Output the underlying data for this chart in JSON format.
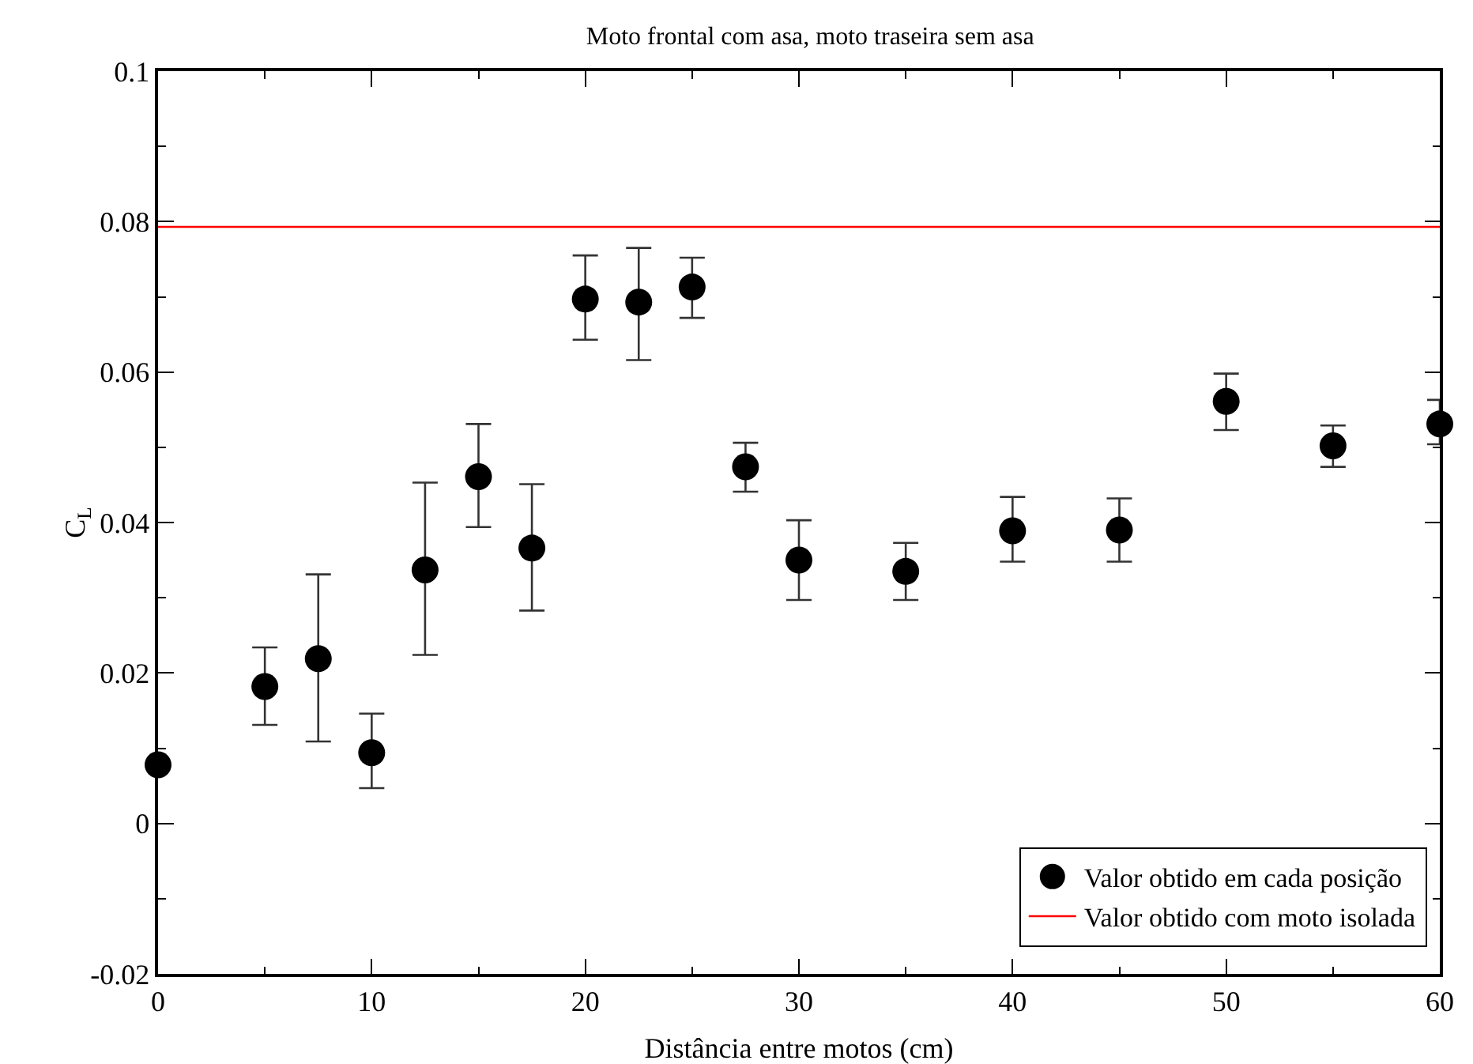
{
  "chart_data": {
    "type": "scatter",
    "title": "Moto frontal com asa, moto traseira sem asa",
    "xlabel": "Distância entre motos (cm)",
    "ylabel": "C$_{L}$",
    "x": [
      0,
      5,
      7.5,
      10,
      12.5,
      15,
      17.5,
      20,
      22.5,
      25,
      27.5,
      30,
      35,
      40,
      45,
      50,
      55,
      60
    ],
    "series": [
      {
        "name": "Valor obtido em cada posição",
        "color": "#000000",
        "values": [
          0.0078,
          0.0182,
          0.0219,
          0.0094,
          0.0337,
          0.0461,
          0.0366,
          0.0697,
          0.0693,
          0.0713,
          0.0474,
          0.035,
          0.0335,
          0.0389,
          0.039,
          0.0561,
          0.0502,
          0.0531
        ],
        "errors": [
          null,
          [
            0.0131,
            0.0234
          ],
          [
            0.0109,
            0.0331
          ],
          [
            0.0047,
            0.0146
          ],
          [
            0.0224,
            0.0453
          ],
          [
            0.0394,
            0.0531
          ],
          [
            0.0283,
            0.0451
          ],
          [
            0.0643,
            0.0755
          ],
          [
            0.0616,
            0.0765
          ],
          [
            0.0672,
            0.0752
          ],
          [
            0.0441,
            0.0506
          ],
          [
            0.0297,
            0.0403
          ],
          [
            0.0297,
            0.0373
          ],
          [
            0.0348,
            0.0434
          ],
          [
            0.0348,
            0.0432
          ],
          [
            0.0523,
            0.0598
          ],
          [
            0.0474,
            0.0529
          ],
          [
            0.0504,
            0.0563
          ]
        ]
      },
      {
        "name": "Valor obtido com moto isolada",
        "type": "line",
        "color": "#ff0000",
        "x": [
          0,
          60
        ],
        "values": [
          0.0793,
          0.0793
        ],
        "marker": "none"
      }
    ],
    "marker": "circle",
    "legend": "bottom right",
    "grid": false,
    "xlim": [
      0,
      60
    ],
    "xticks": [
      0,
      {
        "value": 5,
        "label": null
      },
      10,
      {
        "value": 15,
        "label": null
      },
      20,
      {
        "value": 25,
        "label": null
      },
      30,
      {
        "value": 35,
        "label": null
      },
      40,
      {
        "value": 45,
        "label": null
      },
      50,
      {
        "value": 55,
        "label": null
      },
      60
    ],
    "ylim": [
      -0.02,
      0.1
    ],
    "yticks": [
      -0.02,
      {
        "value": -0.01,
        "label": null
      },
      0,
      {
        "value": 0.01,
        "label": null
      },
      0.02,
      {
        "value": 0.03,
        "label": null
      },
      0.04,
      {
        "value": 0.05,
        "label": null
      },
      0.06,
      {
        "value": 0.07,
        "label": null
      },
      0.08,
      {
        "value": 0.09,
        "label": null
      },
      0.1
    ]
  }
}
